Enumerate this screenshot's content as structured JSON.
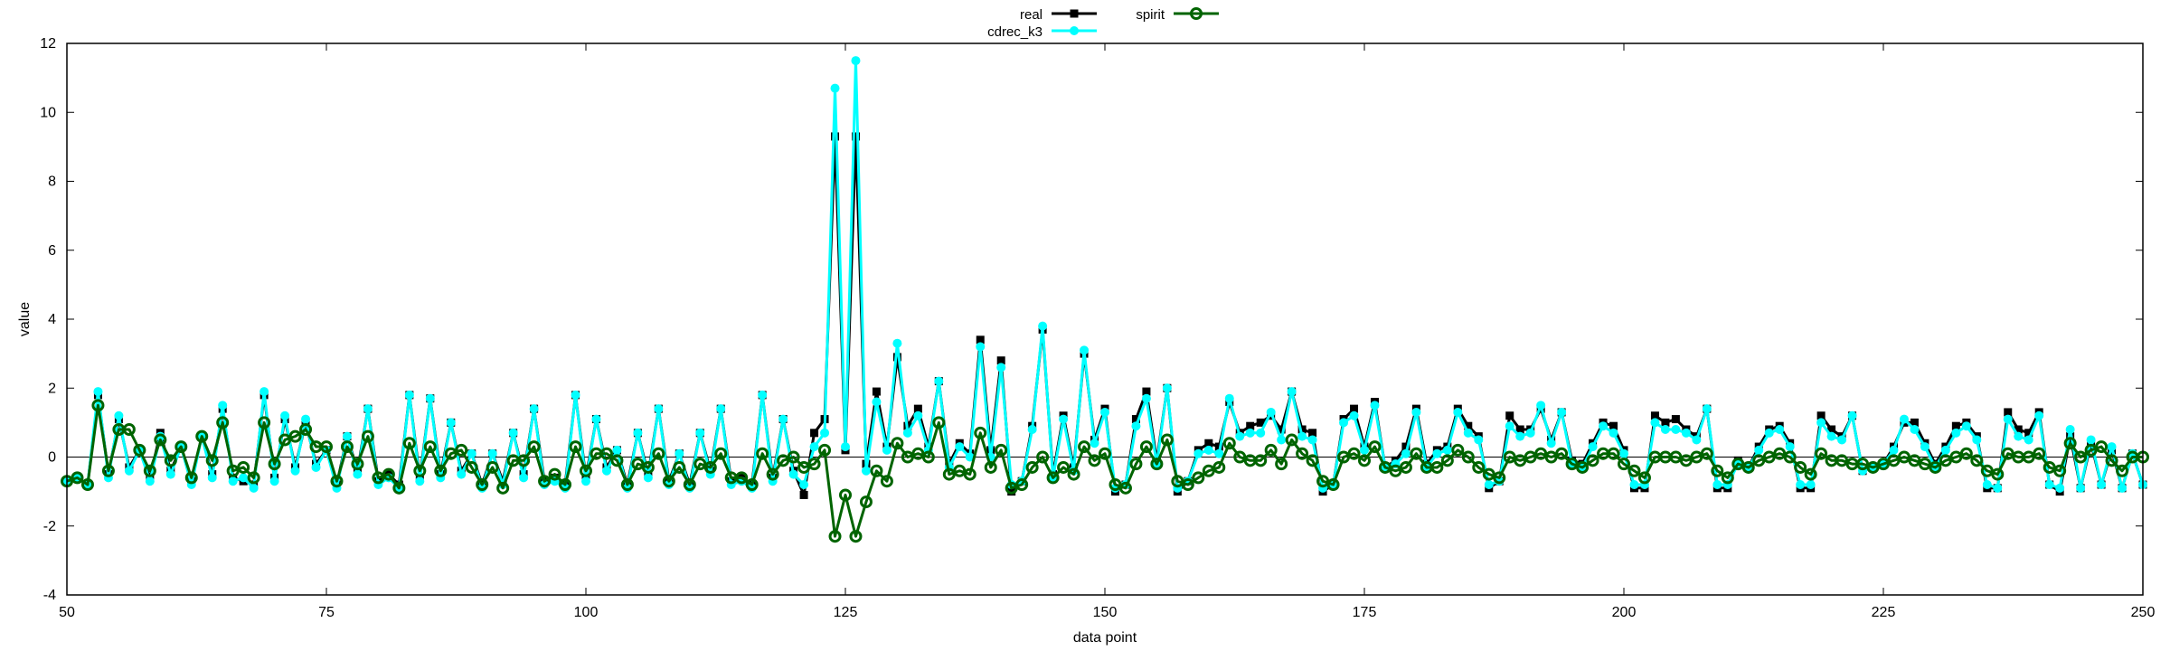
{
  "chart_data": {
    "type": "line",
    "xlabel": "data point",
    "ylabel": "value",
    "xlim": [
      50,
      250
    ],
    "ylim": [
      -4,
      12
    ],
    "x_ticks": [
      50,
      75,
      100,
      125,
      150,
      175,
      200,
      225,
      250
    ],
    "y_ticks": [
      -4,
      -2,
      0,
      2,
      4,
      6,
      8,
      10,
      12
    ],
    "grid": false,
    "zero_line": true,
    "legend_position": "top-center",
    "x": [
      50,
      51,
      52,
      53,
      54,
      55,
      56,
      57,
      58,
      59,
      60,
      61,
      62,
      63,
      64,
      65,
      66,
      67,
      68,
      69,
      70,
      71,
      72,
      73,
      74,
      75,
      76,
      77,
      78,
      79,
      80,
      81,
      82,
      83,
      84,
      85,
      86,
      87,
      88,
      89,
      90,
      91,
      92,
      93,
      94,
      95,
      96,
      97,
      98,
      99,
      100,
      101,
      102,
      103,
      104,
      105,
      106,
      107,
      108,
      109,
      110,
      111,
      112,
      113,
      114,
      115,
      116,
      117,
      118,
      119,
      120,
      121,
      122,
      123,
      124,
      125,
      126,
      127,
      128,
      129,
      130,
      131,
      132,
      133,
      134,
      135,
      136,
      137,
      138,
      139,
      140,
      141,
      142,
      143,
      144,
      145,
      146,
      147,
      148,
      149,
      150,
      151,
      152,
      153,
      154,
      155,
      156,
      157,
      158,
      159,
      160,
      161,
      162,
      163,
      164,
      165,
      166,
      167,
      168,
      169,
      170,
      171,
      172,
      173,
      174,
      175,
      176,
      177,
      178,
      179,
      180,
      181,
      182,
      183,
      184,
      185,
      186,
      187,
      188,
      189,
      190,
      191,
      192,
      193,
      194,
      195,
      196,
      197,
      198,
      199,
      200,
      201,
      202,
      203,
      204,
      205,
      206,
      207,
      208,
      209,
      210,
      211,
      212,
      213,
      214,
      215,
      216,
      217,
      218,
      219,
      220,
      221,
      222,
      223,
      224,
      225,
      226,
      227,
      228,
      229,
      230,
      231,
      232,
      233,
      234,
      235,
      236,
      237,
      238,
      239,
      240,
      241,
      242,
      243,
      244,
      245,
      246,
      247,
      248,
      249,
      250
    ],
    "series": [
      {
        "name": "real",
        "color": "#000000",
        "marker": "square",
        "values": [
          -0.7,
          -0.6,
          -0.8,
          1.8,
          -0.5,
          1.1,
          -0.3,
          0.2,
          -0.6,
          0.7,
          -0.4,
          0.3,
          -0.7,
          0.6,
          -0.5,
          1.4,
          -0.6,
          -0.7,
          -0.8,
          1.8,
          -0.6,
          1.1,
          -0.3,
          1.0,
          -0.2,
          0.2,
          -0.8,
          0.6,
          -0.4,
          1.4,
          -0.7,
          -0.5,
          -0.8,
          1.8,
          -0.6,
          1.7,
          -0.5,
          1.0,
          -0.4,
          0.1,
          -0.8,
          0.1,
          -0.7,
          0.7,
          -0.5,
          1.4,
          -0.7,
          -0.6,
          -0.8,
          1.8,
          -0.6,
          1.1,
          -0.3,
          0.2,
          -0.8,
          0.7,
          -0.5,
          1.4,
          -0.7,
          0.1,
          -0.8,
          0.7,
          -0.4,
          1.4,
          -0.7,
          -0.6,
          -0.8,
          1.8,
          -0.6,
          1.1,
          -0.4,
          -1.1,
          0.7,
          1.1,
          9.3,
          0.2,
          9.3,
          -0.2,
          1.9,
          0.3,
          2.9,
          0.9,
          1.4,
          0.3,
          2.2,
          -0.2,
          0.4,
          0.1,
          3.4,
          0.2,
          2.8,
          -1.0,
          -0.7,
          0.9,
          3.7,
          -0.5,
          1.2,
          -0.3,
          3.0,
          0.5,
          1.4,
          -1.0,
          -0.8,
          1.1,
          1.9,
          -0.1,
          2.0,
          -1.0,
          -0.7,
          0.2,
          0.4,
          0.3,
          1.6,
          0.7,
          0.9,
          1.0,
          1.2,
          0.8,
          1.9,
          0.8,
          0.7,
          -1.0,
          -0.8,
          1.1,
          1.4,
          0.3,
          1.6,
          -0.3,
          -0.1,
          0.3,
          1.4,
          -0.2,
          0.2,
          0.3,
          1.4,
          0.9,
          0.6,
          -0.9,
          -0.7,
          1.2,
          0.8,
          0.8,
          1.4,
          0.5,
          1.3,
          -0.1,
          -0.2,
          0.4,
          1.0,
          0.9,
          0.2,
          -0.9,
          -0.9,
          1.2,
          1.0,
          1.1,
          0.8,
          0.6,
          1.4,
          -0.9,
          -0.9,
          -0.1,
          -0.3,
          0.3,
          0.8,
          0.9,
          0.4,
          -0.9,
          -0.9,
          1.2,
          0.8,
          0.6,
          1.2,
          -0.4,
          -0.3,
          -0.2,
          0.3,
          1.0,
          1.0,
          0.4,
          -0.2,
          0.3,
          0.9,
          1.0,
          0.6,
          -0.9,
          -0.9,
          1.3,
          0.8,
          0.7,
          1.3,
          -0.8,
          -1.0,
          0.6,
          -0.9,
          0.4,
          -0.8,
          0.2,
          -0.9,
          0.1,
          -0.8
        ]
      },
      {
        "name": "cdrec_k3",
        "color": "#00ffff",
        "marker": "circle",
        "values": [
          -0.7,
          -0.6,
          -0.8,
          1.9,
          -0.6,
          1.2,
          -0.4,
          0.2,
          -0.7,
          0.6,
          -0.5,
          0.3,
          -0.8,
          0.6,
          -0.6,
          1.5,
          -0.7,
          -0.6,
          -0.9,
          1.9,
          -0.7,
          1.2,
          -0.4,
          1.1,
          -0.3,
          0.2,
          -0.9,
          0.6,
          -0.5,
          1.4,
          -0.8,
          -0.6,
          -0.9,
          1.8,
          -0.7,
          1.7,
          -0.6,
          1.0,
          -0.5,
          0.1,
          -0.9,
          0.1,
          -0.8,
          0.7,
          -0.6,
          1.4,
          -0.8,
          -0.7,
          -0.9,
          1.8,
          -0.7,
          1.1,
          -0.4,
          0.2,
          -0.9,
          0.7,
          -0.6,
          1.4,
          -0.8,
          0.1,
          -0.9,
          0.7,
          -0.5,
          1.4,
          -0.8,
          -0.7,
          -0.9,
          1.8,
          -0.7,
          1.1,
          -0.5,
          -0.8,
          0.3,
          0.7,
          10.7,
          0.3,
          11.5,
          -0.4,
          1.6,
          0.2,
          3.3,
          0.7,
          1.2,
          0.2,
          2.2,
          -0.3,
          0.3,
          0.0,
          3.2,
          0.0,
          2.6,
          -0.8,
          -0.7,
          0.8,
          3.8,
          -0.6,
          1.1,
          -0.4,
          3.1,
          0.4,
          1.3,
          -0.9,
          -0.8,
          0.9,
          1.7,
          -0.2,
          2.0,
          -0.9,
          -0.7,
          0.1,
          0.2,
          0.1,
          1.7,
          0.6,
          0.7,
          0.7,
          1.3,
          0.5,
          1.9,
          0.6,
          0.5,
          -0.9,
          -0.8,
          1.0,
          1.2,
          0.2,
          1.5,
          -0.3,
          -0.2,
          0.1,
          1.3,
          -0.3,
          0.1,
          0.2,
          1.3,
          0.7,
          0.5,
          -0.8,
          -0.7,
          0.9,
          0.6,
          0.7,
          1.5,
          0.4,
          1.3,
          -0.2,
          -0.3,
          0.3,
          0.9,
          0.7,
          0.1,
          -0.8,
          -0.8,
          1.0,
          0.8,
          0.8,
          0.7,
          0.5,
          1.4,
          -0.8,
          -0.8,
          -0.2,
          -0.3,
          0.2,
          0.7,
          0.8,
          0.3,
          -0.8,
          -0.8,
          1.0,
          0.6,
          0.5,
          1.2,
          -0.4,
          -0.3,
          -0.2,
          0.2,
          1.1,
          0.8,
          0.3,
          -0.3,
          0.2,
          0.7,
          0.9,
          0.5,
          -0.8,
          -0.9,
          1.1,
          0.6,
          0.5,
          1.2,
          -0.8,
          -0.9,
          0.8,
          -0.9,
          0.5,
          -0.8,
          0.3,
          -0.9,
          0.1,
          -0.8
        ]
      },
      {
        "name": "spirit",
        "color": "#006400",
        "marker": "open-circle",
        "values": [
          -0.7,
          -0.6,
          -0.8,
          1.5,
          -0.4,
          0.8,
          0.8,
          0.2,
          -0.4,
          0.5,
          -0.1,
          0.3,
          -0.6,
          0.6,
          -0.1,
          1.0,
          -0.4,
          -0.3,
          -0.6,
          1.0,
          -0.2,
          0.5,
          0.6,
          0.8,
          0.3,
          0.3,
          -0.7,
          0.3,
          -0.2,
          0.6,
          -0.6,
          -0.5,
          -0.9,
          0.4,
          -0.4,
          0.3,
          -0.4,
          0.1,
          0.2,
          -0.3,
          -0.8,
          -0.3,
          -0.9,
          -0.1,
          -0.1,
          0.3,
          -0.7,
          -0.5,
          -0.8,
          0.3,
          -0.4,
          0.1,
          0.1,
          -0.1,
          -0.8,
          -0.2,
          -0.3,
          0.1,
          -0.7,
          -0.3,
          -0.8,
          -0.2,
          -0.3,
          0.1,
          -0.6,
          -0.6,
          -0.8,
          0.1,
          -0.5,
          -0.1,
          0.0,
          -0.3,
          -0.2,
          0.2,
          -2.3,
          -1.1,
          -2.3,
          -1.3,
          -0.4,
          -0.7,
          0.4,
          0.0,
          0.1,
          0.0,
          1.0,
          -0.5,
          -0.4,
          -0.5,
          0.7,
          -0.3,
          0.2,
          -0.9,
          -0.8,
          -0.3,
          0.0,
          -0.6,
          -0.3,
          -0.5,
          0.3,
          -0.1,
          0.1,
          -0.8,
          -0.9,
          -0.2,
          0.3,
          -0.2,
          0.5,
          -0.7,
          -0.8,
          -0.6,
          -0.4,
          -0.3,
          0.4,
          0.0,
          -0.1,
          -0.1,
          0.2,
          -0.2,
          0.5,
          0.1,
          -0.1,
          -0.7,
          -0.8,
          0.0,
          0.1,
          -0.1,
          0.3,
          -0.3,
          -0.4,
          -0.3,
          0.1,
          -0.3,
          -0.3,
          -0.1,
          0.2,
          0.0,
          -0.3,
          -0.5,
          -0.6,
          0.0,
          -0.1,
          0.0,
          0.1,
          0.0,
          0.1,
          -0.2,
          -0.3,
          -0.1,
          0.1,
          0.1,
          -0.2,
          -0.4,
          -0.6,
          0.0,
          0.0,
          0.0,
          -0.1,
          0.0,
          0.1,
          -0.4,
          -0.6,
          -0.2,
          -0.3,
          -0.1,
          0.0,
          0.1,
          0.0,
          -0.3,
          -0.5,
          0.1,
          -0.1,
          -0.1,
          -0.2,
          -0.2,
          -0.3,
          -0.2,
          -0.1,
          0.0,
          -0.1,
          -0.2,
          -0.3,
          -0.1,
          0.0,
          0.1,
          -0.1,
          -0.4,
          -0.5,
          0.1,
          0.0,
          0.0,
          0.1,
          -0.3,
          -0.4,
          0.4,
          0.0,
          0.2,
          0.3,
          -0.1,
          -0.4,
          0.0,
          0.0
        ]
      }
    ]
  }
}
